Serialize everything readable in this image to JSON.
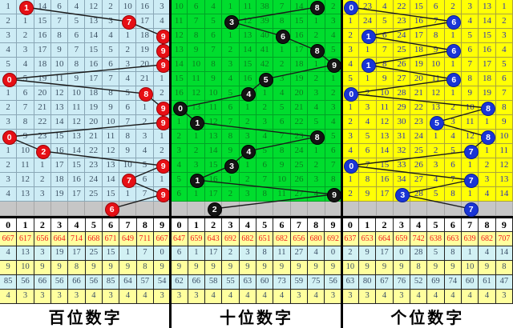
{
  "chart_data": {
    "type": "table",
    "description": "3D lottery digit trend chart (missing-value trend), 14 draws plus latest gray row; three panels for hundreds / tens / units digit",
    "columns": [
      "0",
      "1",
      "2",
      "3",
      "4",
      "5",
      "6",
      "7",
      "8",
      "9"
    ],
    "draw_sequences": {
      "hundreds": [
        1,
        7,
        9,
        9,
        9,
        0,
        8,
        9,
        9,
        0,
        2,
        9,
        7,
        9
      ],
      "tens": [
        8,
        3,
        6,
        8,
        9,
        5,
        4,
        0,
        1,
        8,
        4,
        3,
        1,
        9
      ],
      "units": [
        0,
        6,
        1,
        6,
        1,
        6,
        0,
        8,
        5,
        8,
        7,
        0,
        7,
        3
      ]
    },
    "latest_row_balls": {
      "hundreds": 6,
      "tens": 2,
      "units": 7
    }
  },
  "columns": [
    "0",
    "1",
    "2",
    "3",
    "4",
    "5",
    "6",
    "7",
    "8",
    "9"
  ],
  "ball_colors": {
    "hundreds": "#e60f15",
    "tens": "#141414",
    "units": "#1a35d6"
  },
  "panels": [
    {
      "label": "百位数字",
      "ball_class": "red",
      "rows": [
        {
          "cells": [
            1,
            1,
            14,
            6,
            4,
            12,
            2,
            10,
            16,
            3
          ],
          "ball": 1
        },
        {
          "cells": [
            2,
            1,
            15,
            7,
            5,
            13,
            3,
            7,
            17,
            4
          ],
          "ball": 7
        },
        {
          "cells": [
            3,
            2,
            16,
            8,
            6,
            14,
            4,
            1,
            18,
            9
          ],
          "ball": 9
        },
        {
          "cells": [
            4,
            3,
            17,
            9,
            7,
            15,
            5,
            2,
            19,
            9
          ],
          "ball": 9
        },
        {
          "cells": [
            5,
            4,
            18,
            10,
            8,
            16,
            6,
            3,
            20,
            9
          ],
          "ball": 9
        },
        {
          "cells": [
            0,
            5,
            19,
            11,
            9,
            17,
            7,
            4,
            21,
            1
          ],
          "ball": 0
        },
        {
          "cells": [
            1,
            6,
            20,
            12,
            10,
            18,
            8,
            5,
            8,
            2
          ],
          "ball": 8
        },
        {
          "cells": [
            2,
            7,
            21,
            13,
            11,
            19,
            9,
            6,
            1,
            9
          ],
          "ball": 9
        },
        {
          "cells": [
            3,
            8,
            22,
            14,
            12,
            20,
            10,
            7,
            2,
            9
          ],
          "ball": 9
        },
        {
          "cells": [
            0,
            9,
            23,
            15,
            13,
            21,
            11,
            8,
            3,
            1
          ],
          "ball": 0
        },
        {
          "cells": [
            1,
            10,
            2,
            16,
            14,
            22,
            12,
            9,
            4,
            2
          ],
          "ball": 2
        },
        {
          "cells": [
            2,
            11,
            1,
            17,
            15,
            23,
            13,
            10,
            5,
            9
          ],
          "ball": 9
        },
        {
          "cells": [
            3,
            12,
            2,
            18,
            16,
            24,
            14,
            7,
            6,
            1
          ],
          "ball": 7
        },
        {
          "cells": [
            4,
            13,
            3,
            19,
            17,
            25,
            15,
            1,
            7,
            9
          ],
          "ball": 9
        }
      ],
      "gray_ball": 6,
      "stats": [
        [
          "667",
          "617",
          "656",
          "664",
          "714",
          "668",
          "671",
          "649",
          "711",
          "667"
        ],
        [
          "4",
          "13",
          "3",
          "19",
          "17",
          "25",
          "15",
          "1",
          "7",
          "0"
        ],
        [
          "9",
          "10",
          "9",
          "9",
          "8",
          "9",
          "9",
          "9",
          "8",
          "9"
        ],
        [
          "85",
          "56",
          "66",
          "56",
          "66",
          "56",
          "85",
          "64",
          "57",
          "54"
        ],
        [
          "4",
          "3",
          "3",
          "3",
          "3",
          "4",
          "3",
          "4",
          "4",
          "3"
        ]
      ]
    },
    {
      "label": "十位数字",
      "ball_class": "black",
      "rows": [
        {
          "cells": [
            10,
            6,
            4,
            1,
            11,
            38,
            7,
            14,
            8,
            2
          ],
          "ball": 8
        },
        {
          "cells": [
            11,
            7,
            5,
            3,
            12,
            39,
            8,
            15,
            1,
            3
          ],
          "ball": 3
        },
        {
          "cells": [
            12,
            8,
            6,
            1,
            13,
            40,
            6,
            16,
            2,
            4
          ],
          "ball": 6
        },
        {
          "cells": [
            13,
            9,
            7,
            2,
            14,
            41,
            1,
            17,
            8,
            5
          ],
          "ball": 8
        },
        {
          "cells": [
            14,
            10,
            8,
            3,
            15,
            42,
            2,
            18,
            1,
            9
          ],
          "ball": 9
        },
        {
          "cells": [
            15,
            11,
            9,
            4,
            16,
            5,
            3,
            19,
            2,
            1
          ],
          "ball": 5
        },
        {
          "cells": [
            16,
            12,
            10,
            5,
            4,
            1,
            4,
            20,
            3,
            2
          ],
          "ball": 4
        },
        {
          "cells": [
            0,
            13,
            11,
            6,
            1,
            2,
            5,
            21,
            4,
            3
          ],
          "ball": 0
        },
        {
          "cells": [
            1,
            1,
            12,
            7,
            2,
            3,
            6,
            22,
            5,
            4
          ],
          "ball": 1
        },
        {
          "cells": [
            2,
            1,
            13,
            8,
            3,
            4,
            7,
            23,
            8,
            5
          ],
          "ball": 8
        },
        {
          "cells": [
            3,
            2,
            14,
            9,
            4,
            5,
            8,
            24,
            1,
            6
          ],
          "ball": 4
        },
        {
          "cells": [
            4,
            3,
            15,
            3,
            1,
            6,
            9,
            25,
            2,
            7
          ],
          "ball": 3
        },
        {
          "cells": [
            5,
            1,
            16,
            1,
            2,
            7,
            10,
            26,
            3,
            8
          ],
          "ball": 1
        },
        {
          "cells": [
            6,
            1,
            17,
            2,
            3,
            8,
            11,
            27,
            4,
            9
          ],
          "ball": 9
        }
      ],
      "gray_ball": 2,
      "stats": [
        [
          "647",
          "659",
          "643",
          "692",
          "682",
          "651",
          "682",
          "656",
          "680",
          "692"
        ],
        [
          "6",
          "1",
          "17",
          "2",
          "3",
          "8",
          "11",
          "27",
          "4",
          "0"
        ],
        [
          "9",
          "9",
          "9",
          "9",
          "9",
          "9",
          "9",
          "9",
          "9",
          "9"
        ],
        [
          "62",
          "66",
          "58",
          "55",
          "63",
          "60",
          "73",
          "59",
          "75",
          "56"
        ],
        [
          "3",
          "3",
          "4",
          "4",
          "4",
          "4",
          "4",
          "3",
          "4",
          "3"
        ]
      ]
    },
    {
      "label": "个位数字",
      "ball_class": "blue",
      "rows": [
        {
          "cells": [
            0,
            23,
            4,
            22,
            15,
            6,
            2,
            3,
            13,
            1
          ],
          "ball": 0
        },
        {
          "cells": [
            1,
            24,
            5,
            23,
            16,
            7,
            6,
            4,
            14,
            2
          ],
          "ball": 6
        },
        {
          "cells": [
            2,
            1,
            6,
            24,
            17,
            8,
            1,
            5,
            15,
            3
          ],
          "ball": 1
        },
        {
          "cells": [
            3,
            1,
            7,
            25,
            18,
            9,
            6,
            6,
            16,
            4
          ],
          "ball": 6
        },
        {
          "cells": [
            4,
            1,
            8,
            26,
            19,
            10,
            1,
            7,
            17,
            5
          ],
          "ball": 1
        },
        {
          "cells": [
            5,
            1,
            9,
            27,
            20,
            11,
            6,
            8,
            18,
            6
          ],
          "ball": 6
        },
        {
          "cells": [
            0,
            2,
            10,
            28,
            21,
            12,
            1,
            9,
            19,
            7
          ],
          "ball": 0
        },
        {
          "cells": [
            1,
            3,
            11,
            29,
            22,
            13,
            2,
            10,
            8,
            8
          ],
          "ball": 8
        },
        {
          "cells": [
            2,
            4,
            12,
            30,
            23,
            5,
            3,
            11,
            1,
            9
          ],
          "ball": 5
        },
        {
          "cells": [
            3,
            5,
            13,
            31,
            24,
            1,
            4,
            12,
            8,
            10
          ],
          "ball": 8
        },
        {
          "cells": [
            4,
            6,
            14,
            32,
            25,
            2,
            5,
            7,
            1,
            11
          ],
          "ball": 7
        },
        {
          "cells": [
            0,
            7,
            15,
            33,
            26,
            3,
            6,
            1,
            2,
            12
          ],
          "ball": 0
        },
        {
          "cells": [
            1,
            8,
            16,
            34,
            27,
            4,
            7,
            7,
            3,
            13
          ],
          "ball": 7
        },
        {
          "cells": [
            2,
            9,
            17,
            3,
            28,
            5,
            8,
            1,
            4,
            14
          ],
          "ball": 3
        }
      ],
      "gray_ball": 7,
      "stats": [
        [
          "637",
          "653",
          "664",
          "659",
          "742",
          "638",
          "663",
          "639",
          "682",
          "707"
        ],
        [
          "2",
          "9",
          "17",
          "0",
          "28",
          "5",
          "8",
          "1",
          "4",
          "14"
        ],
        [
          "10",
          "9",
          "9",
          "9",
          "8",
          "9",
          "9",
          "10",
          "9",
          "8"
        ],
        [
          "63",
          "80",
          "67",
          "76",
          "52",
          "69",
          "74",
          "60",
          "61",
          "47"
        ],
        [
          "3",
          "3",
          "4",
          "3",
          "4",
          "4",
          "4",
          "4",
          "4",
          "3"
        ]
      ]
    }
  ]
}
